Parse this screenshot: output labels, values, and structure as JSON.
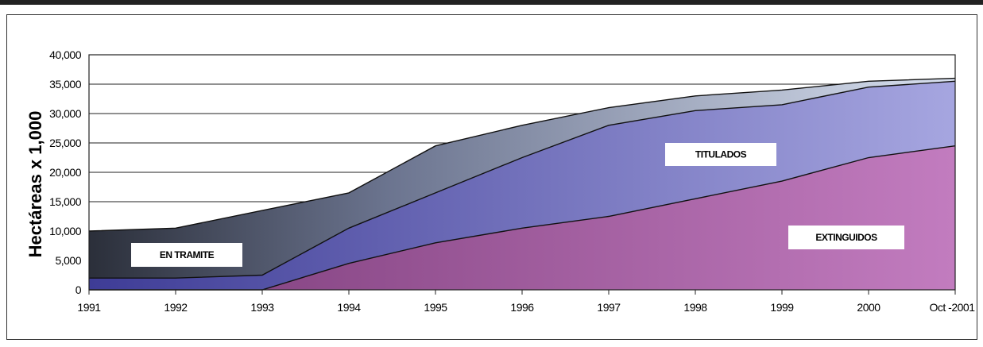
{
  "chart_data": {
    "type": "area",
    "stacked": true,
    "title": "",
    "xlabel": "",
    "ylabel": "Hectáreas x 1,000",
    "ylim": [
      0,
      40000
    ],
    "yticks": [
      "0",
      "5,000",
      "10,000",
      "15,000",
      "20,000",
      "25,000",
      "30,000",
      "35,000",
      "40,000"
    ],
    "categories": [
      "1991",
      "1992",
      "1993",
      "1994",
      "1995",
      "1996",
      "1997",
      "1998",
      "1999",
      "2000",
      "Oct -2001"
    ],
    "grid": true,
    "series": [
      {
        "name": "EXTINGUIDOS",
        "color": "#9b4f93",
        "values": [
          0,
          0,
          0,
          4500,
          8000,
          10500,
          12500,
          15500,
          18500,
          22500,
          24500
        ]
      },
      {
        "name": "TITULADOS",
        "color": "#6a66c4",
        "values": [
          2000,
          2000,
          2500,
          6000,
          8500,
          12000,
          15500,
          15000,
          13000,
          12000,
          11000
        ]
      },
      {
        "name": "EN TRAMITE",
        "color": "#a9b4d6",
        "values": [
          8000,
          8500,
          11000,
          6000,
          8000,
          5500,
          3000,
          2500,
          2500,
          1000,
          500
        ]
      }
    ],
    "annotations": [
      "EN TRAMITE",
      "TITULADOS",
      "EXTINGUIDOS"
    ]
  }
}
